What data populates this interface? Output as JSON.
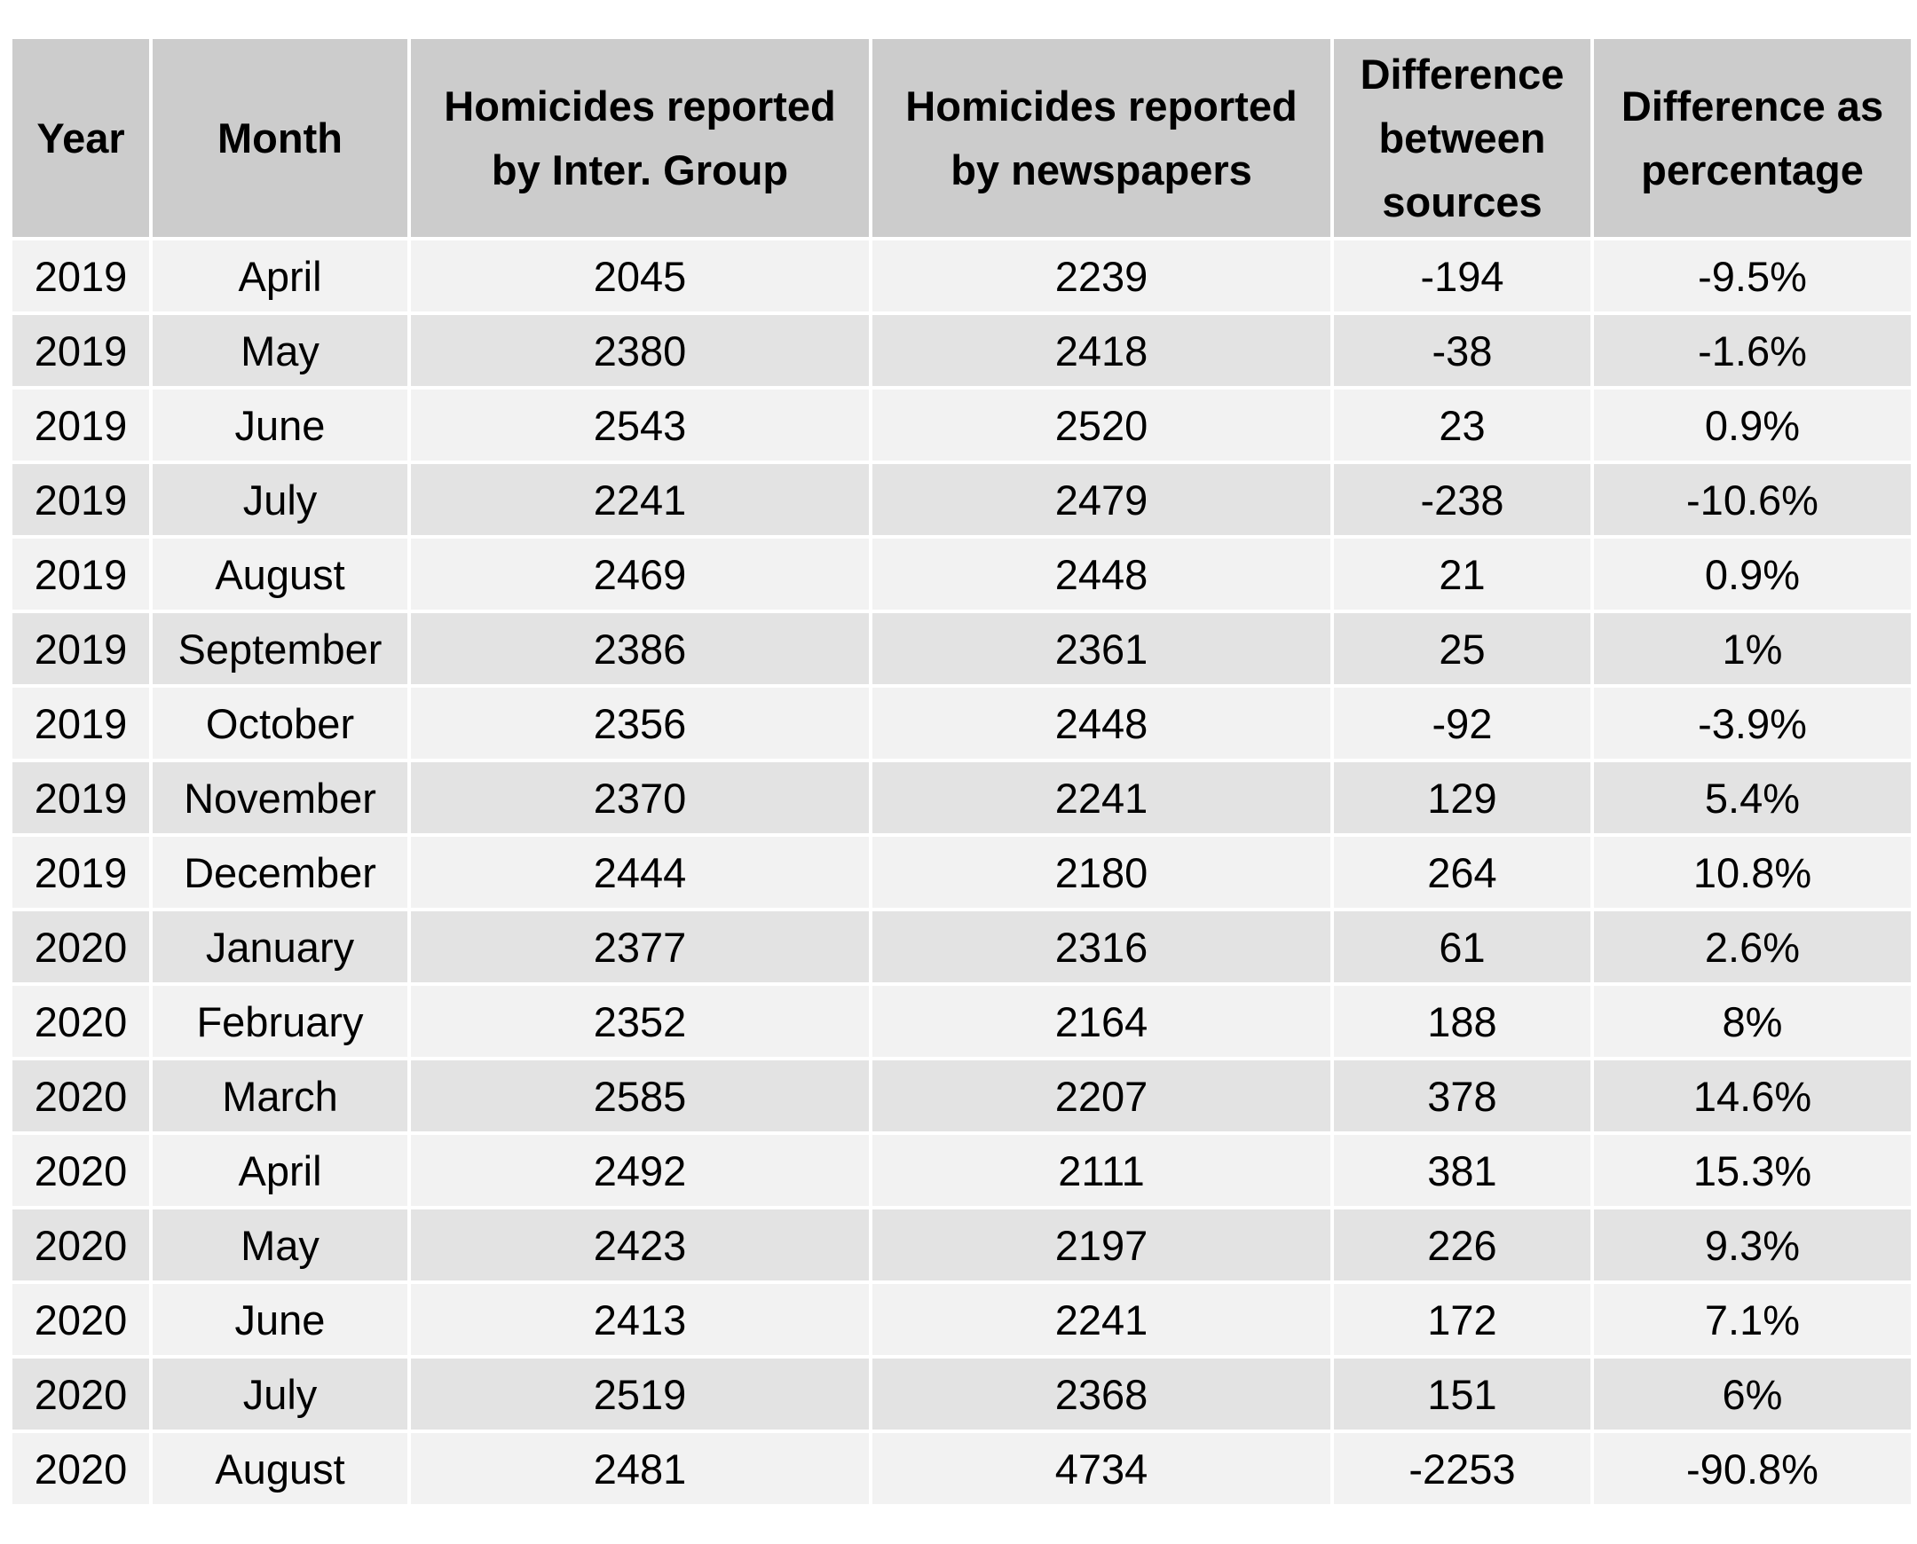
{
  "table": {
    "headers": [
      [
        "Year"
      ],
      [
        "Month"
      ],
      [
        "Homicides reported",
        "by Inter. Group"
      ],
      [
        "Homicides reported",
        "by newspapers"
      ],
      [
        "Difference",
        "between",
        "sources"
      ],
      [
        "Difference as",
        "percentage"
      ]
    ],
    "rows": [
      [
        "2019",
        "April",
        "2045",
        "2239",
        "-194",
        "-9.5%"
      ],
      [
        "2019",
        "May",
        "2380",
        "2418",
        "-38",
        "-1.6%"
      ],
      [
        "2019",
        "June",
        "2543",
        "2520",
        "23",
        "0.9%"
      ],
      [
        "2019",
        "July",
        "2241",
        "2479",
        "-238",
        "-10.6%"
      ],
      [
        "2019",
        "August",
        "2469",
        "2448",
        "21",
        "0.9%"
      ],
      [
        "2019",
        "September",
        "2386",
        "2361",
        "25",
        "1%"
      ],
      [
        "2019",
        "October",
        "2356",
        "2448",
        "-92",
        "-3.9%"
      ],
      [
        "2019",
        "November",
        "2370",
        "2241",
        "129",
        "5.4%"
      ],
      [
        "2019",
        "December",
        "2444",
        "2180",
        "264",
        "10.8%"
      ],
      [
        "2020",
        "January",
        "2377",
        "2316",
        "61",
        "2.6%"
      ],
      [
        "2020",
        "February",
        "2352",
        "2164",
        "188",
        "8%"
      ],
      [
        "2020",
        "March",
        "2585",
        "2207",
        "378",
        "14.6%"
      ],
      [
        "2020",
        "April",
        "2492",
        "2111",
        "381",
        "15.3%"
      ],
      [
        "2020",
        "May",
        "2423",
        "2197",
        "226",
        "9.3%"
      ],
      [
        "2020",
        "June",
        "2413",
        "2241",
        "172",
        "7.1%"
      ],
      [
        "2020",
        "July",
        "2519",
        "2368",
        "151",
        "6%"
      ],
      [
        "2020",
        "August",
        "2481",
        "4734",
        "-2253",
        "-90.8%"
      ]
    ]
  }
}
